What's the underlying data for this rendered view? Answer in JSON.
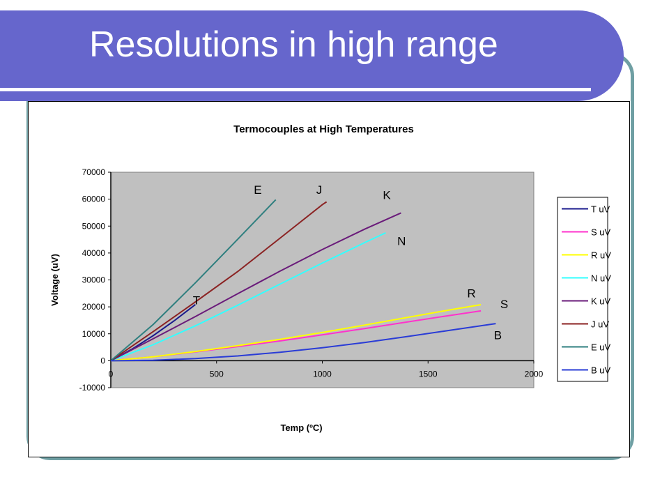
{
  "slide": {
    "title": "Resolutions in high range"
  },
  "chart_data": {
    "type": "line",
    "title": "Termocouples at High Temperatures",
    "xlabel": "Temp (ºC)",
    "ylabel": "Voltage (uV)",
    "xlim": [
      0,
      2000
    ],
    "ylim": [
      -10000,
      70000
    ],
    "x_ticks": [
      "0",
      "500",
      "1000",
      "1500",
      "2000"
    ],
    "y_ticks": [
      "-10000",
      "0",
      "10000",
      "20000",
      "30000",
      "40000",
      "50000",
      "60000",
      "70000"
    ],
    "grid": false,
    "legend": "right",
    "plot_background": "#c0c0c0",
    "series": [
      {
        "name": "T uV",
        "color": "#1a1a8c",
        "points": [
          [
            0,
            0
          ],
          [
            100,
            4279
          ],
          [
            200,
            9288
          ],
          [
            300,
            14862
          ],
          [
            400,
            20872
          ]
        ]
      },
      {
        "name": "S uV",
        "color": "#ff33cc",
        "points": [
          [
            0,
            0
          ],
          [
            200,
            1441
          ],
          [
            400,
            3259
          ],
          [
            600,
            5239
          ],
          [
            800,
            7345
          ],
          [
            1000,
            9587
          ],
          [
            1200,
            11951
          ],
          [
            1400,
            14373
          ],
          [
            1600,
            16777
          ],
          [
            1750,
            18500
          ]
        ]
      },
      {
        "name": "R uV",
        "color": "#ffff00",
        "points": [
          [
            0,
            0
          ],
          [
            200,
            1469
          ],
          [
            400,
            3408
          ],
          [
            600,
            5583
          ],
          [
            800,
            7950
          ],
          [
            1000,
            10506
          ],
          [
            1200,
            13228
          ],
          [
            1400,
            16035
          ],
          [
            1600,
            18842
          ],
          [
            1750,
            20800
          ]
        ]
      },
      {
        "name": "N uV",
        "color": "#33ffff",
        "points": [
          [
            0,
            0
          ],
          [
            200,
            5913
          ],
          [
            400,
            12974
          ],
          [
            600,
            20613
          ],
          [
            800,
            28455
          ],
          [
            1000,
            36256
          ],
          [
            1200,
            43846
          ],
          [
            1300,
            47513
          ]
        ]
      },
      {
        "name": "K uV",
        "color": "#6a1b7a",
        "points": [
          [
            0,
            0
          ],
          [
            200,
            8138
          ],
          [
            400,
            16397
          ],
          [
            600,
            24905
          ],
          [
            800,
            33275
          ],
          [
            1000,
            41276
          ],
          [
            1200,
            48838
          ],
          [
            1372,
            54886
          ]
        ]
      },
      {
        "name": "J uV",
        "color": "#8b2323",
        "points": [
          [
            0,
            0
          ],
          [
            200,
            10779
          ],
          [
            400,
            21848
          ],
          [
            600,
            33102
          ],
          [
            800,
            45498
          ],
          [
            1000,
            57942
          ],
          [
            1020,
            59000
          ]
        ]
      },
      {
        "name": "E uV",
        "color": "#2f7f7f",
        "points": [
          [
            0,
            0
          ],
          [
            200,
            13421
          ],
          [
            400,
            28946
          ],
          [
            600,
            45093
          ],
          [
            780,
            59800
          ]
        ]
      },
      {
        "name": "B uV",
        "color": "#2a3cd6",
        "points": [
          [
            0,
            0
          ],
          [
            200,
            178
          ],
          [
            400,
            787
          ],
          [
            600,
            1792
          ],
          [
            800,
            3154
          ],
          [
            1000,
            4834
          ],
          [
            1200,
            6786
          ],
          [
            1400,
            8956
          ],
          [
            1600,
            11263
          ],
          [
            1820,
            13800
          ]
        ]
      }
    ],
    "annotations": [
      {
        "text": "E",
        "x": 695,
        "y": 62000
      },
      {
        "text": "J",
        "x": 985,
        "y": 62000
      },
      {
        "text": "K",
        "x": 1305,
        "y": 60000
      },
      {
        "text": "N",
        "x": 1375,
        "y": 43000
      },
      {
        "text": "T",
        "x": 405,
        "y": 21000
      },
      {
        "text": "R",
        "x": 1705,
        "y": 23500
      },
      {
        "text": "S",
        "x": 1860,
        "y": 19500
      },
      {
        "text": "B",
        "x": 1830,
        "y": 8000
      }
    ]
  }
}
